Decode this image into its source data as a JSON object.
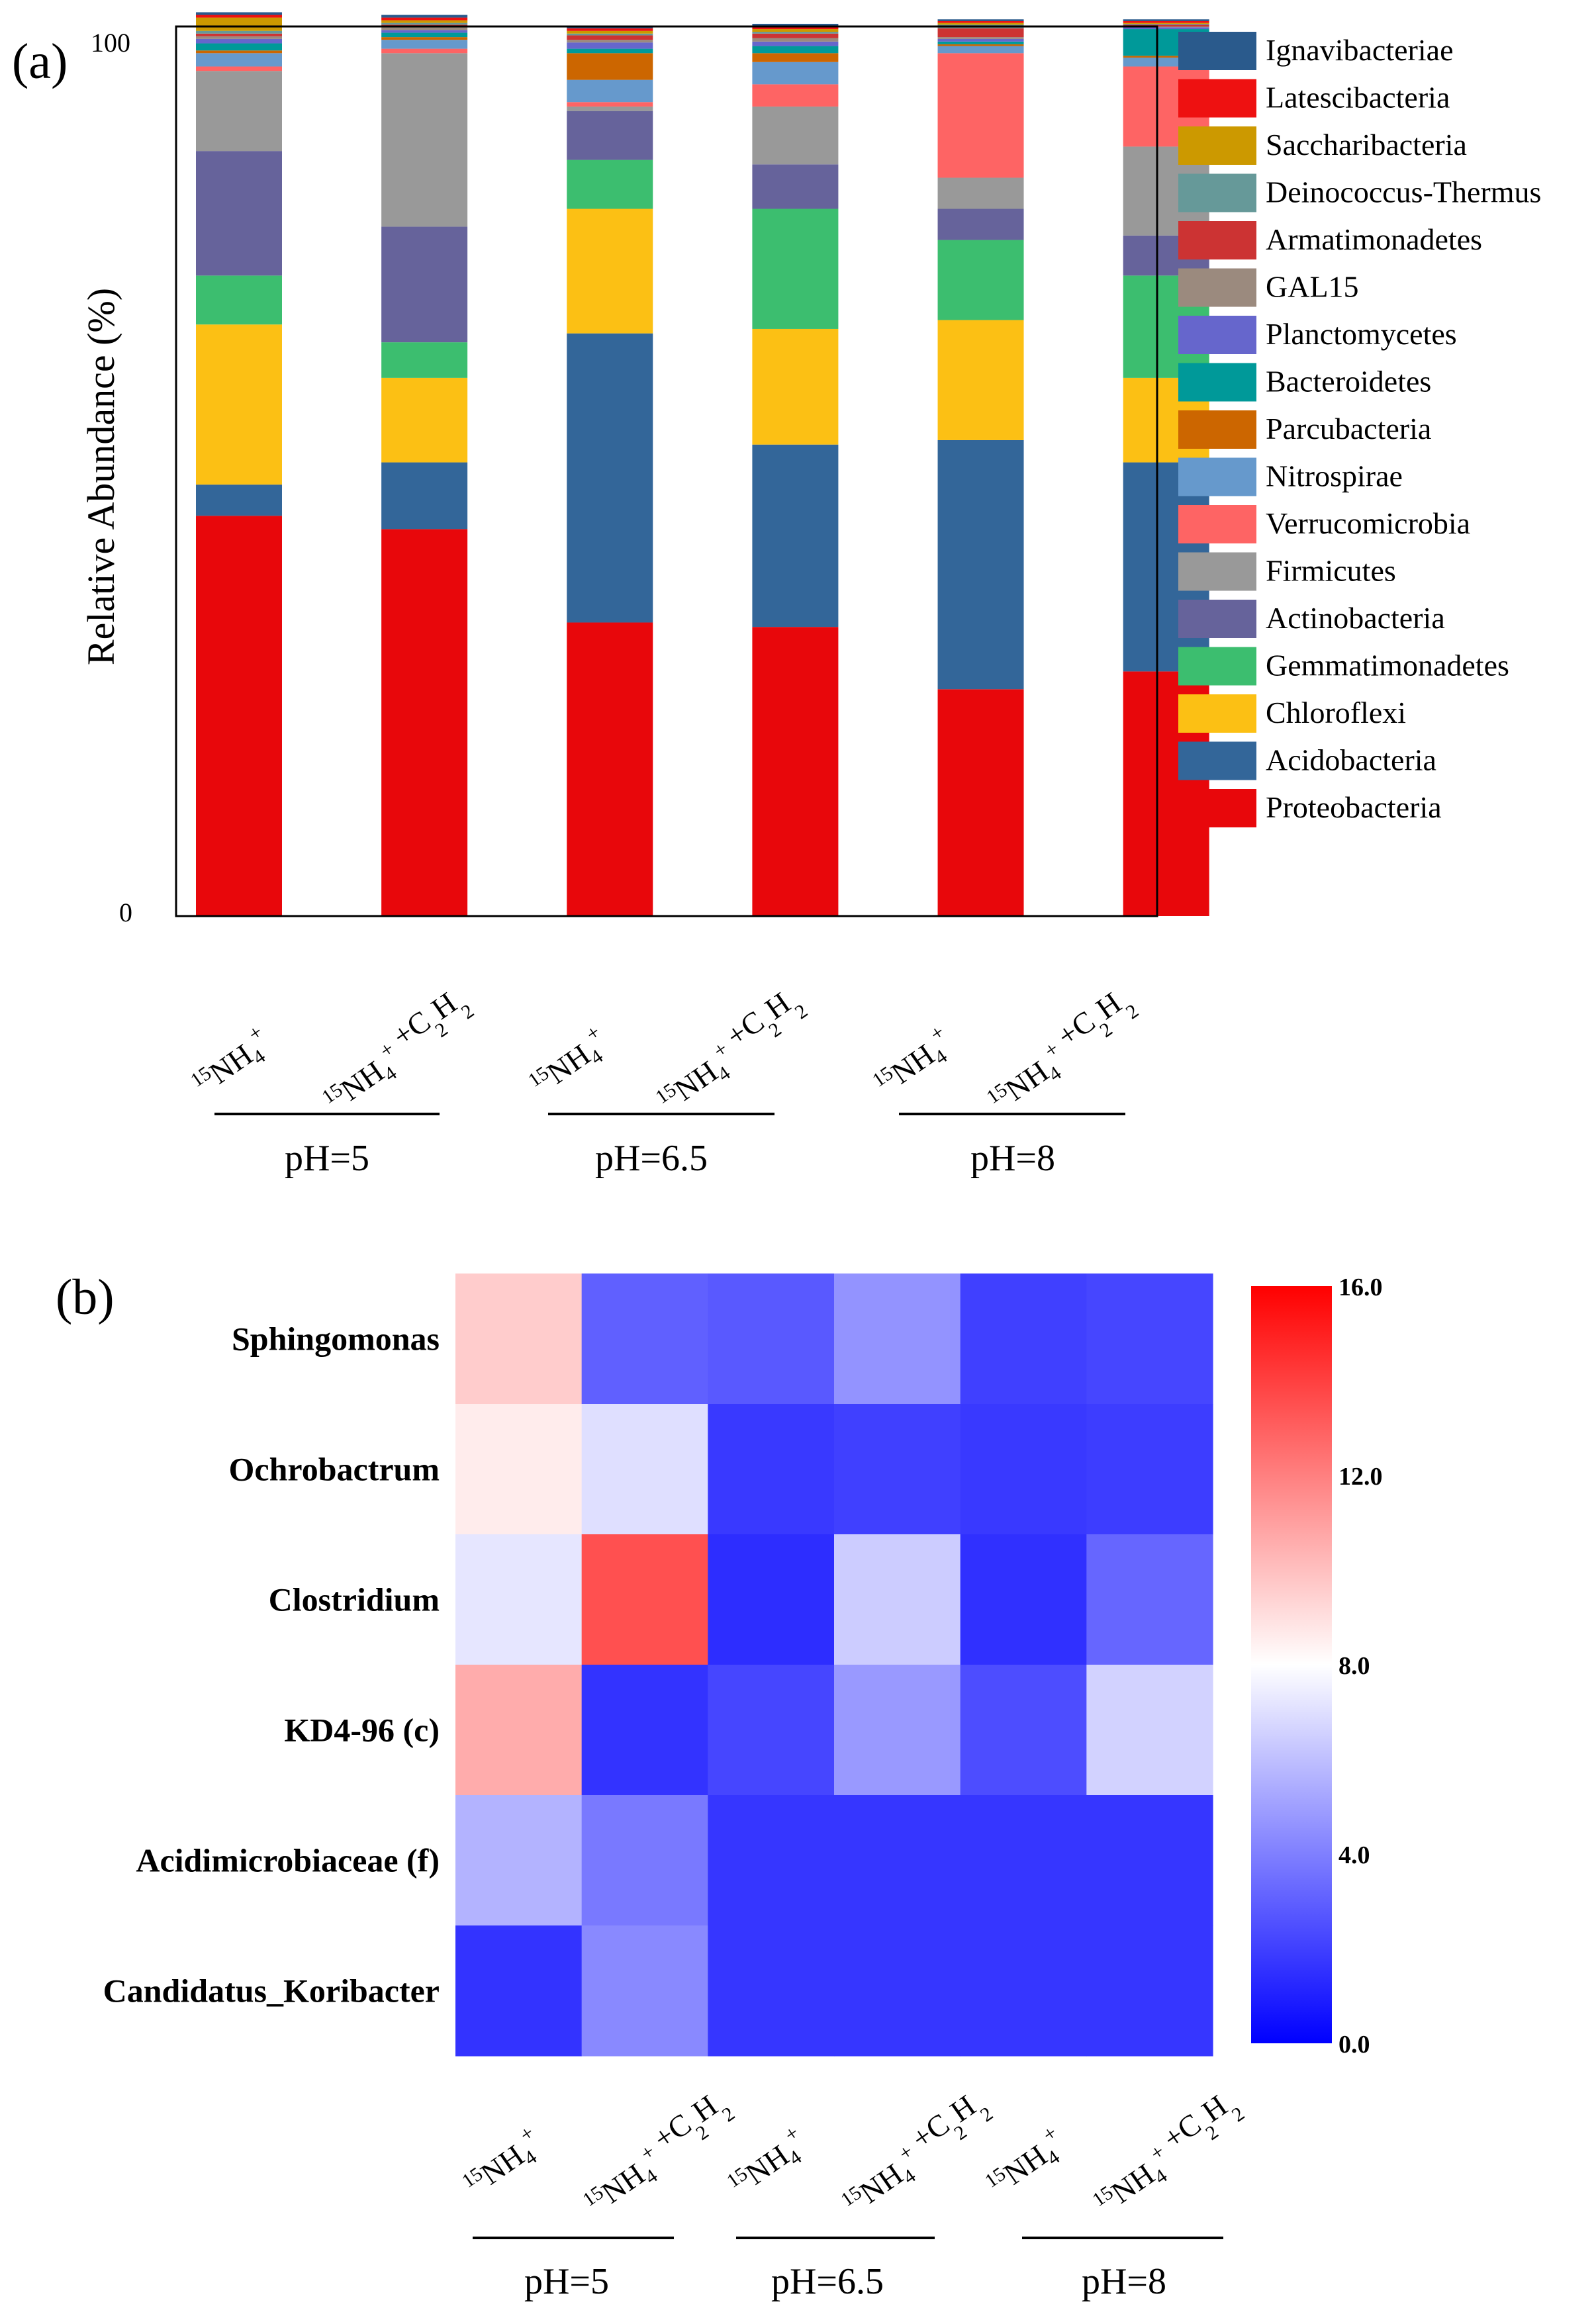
{
  "panel_a": {
    "panel_label": "(a)",
    "ylabel": "Relative Abundance (%)",
    "ytick_top": "100",
    "ytick_bottom": "0",
    "group_labels": [
      "pH=5",
      "pH=6.5",
      "pH=8"
    ]
  },
  "panel_b": {
    "panel_label": "(b)",
    "colorbar_ticks": [
      "16.0",
      "12.0",
      "8.0",
      "4.0",
      "0.0"
    ],
    "group_labels": [
      "pH=5",
      "pH=6.5",
      "pH=8"
    ]
  },
  "chart_data": [
    {
      "type": "bar",
      "stacked": true,
      "ylabel": "Relative Abundance (%)",
      "ylim": [
        0,
        100
      ],
      "categories": [
        "15NH4+ (pH=5)",
        "15NH4+ +C2H2 (pH=5)",
        "15NH4+ (pH=6.5)",
        "15NH4+ +C2H2 (pH=6.5)",
        "15NH4+ (pH=8)",
        "15NH4+ +C2H2 (pH=8)"
      ],
      "category_groups": [
        "pH=5",
        "pH=5",
        "pH=6.5",
        "pH=6.5",
        "pH=8",
        "pH=8"
      ],
      "legend_position": "right",
      "series": [
        {
          "name": "Proteobacteria",
          "color": "#E8070B",
          "values": [
            45.0,
            43.5,
            33.0,
            32.5,
            25.5,
            27.5
          ]
        },
        {
          "name": "Acidobacteria",
          "color": "#336699",
          "values": [
            3.5,
            7.5,
            32.5,
            20.5,
            28.0,
            23.5
          ]
        },
        {
          "name": "Chloroflexi",
          "color": "#FCC014",
          "values": [
            18.0,
            9.5,
            14.0,
            13.0,
            13.5,
            9.5
          ]
        },
        {
          "name": "Gemmatimonadetes",
          "color": "#3CBE6F",
          "values": [
            5.5,
            4.0,
            5.5,
            13.5,
            9.0,
            11.5
          ]
        },
        {
          "name": "Actinobacteria",
          "color": "#66639B",
          "values": [
            14.0,
            13.0,
            5.5,
            5.0,
            3.5,
            4.5
          ]
        },
        {
          "name": "Firmicutes",
          "color": "#999999",
          "values": [
            9.0,
            19.5,
            0.5,
            6.5,
            3.5,
            10.0
          ]
        },
        {
          "name": "Verrucomicrobia",
          "color": "#FE6464",
          "values": [
            0.5,
            0.5,
            0.5,
            2.5,
            14.0,
            9.0
          ]
        },
        {
          "name": "Nitrospirae",
          "color": "#6699CC",
          "values": [
            1.5,
            1.0,
            2.5,
            2.5,
            0.8,
            1.0
          ]
        },
        {
          "name": "Parcubacteria",
          "color": "#CC6600",
          "values": [
            0.3,
            0.3,
            3.0,
            1.0,
            0.2,
            0.2
          ]
        },
        {
          "name": "Bacteroidetes",
          "color": "#009999",
          "values": [
            0.8,
            0.5,
            0.5,
            0.8,
            0.3,
            3.0
          ]
        },
        {
          "name": "Planctomycetes",
          "color": "#6666CC",
          "values": [
            0.5,
            0.3,
            0.7,
            0.5,
            0.3,
            0.2
          ]
        },
        {
          "name": "GAL15",
          "color": "#9B8A7E",
          "values": [
            0.3,
            0.3,
            0.3,
            0.4,
            0.2,
            0.1
          ]
        },
        {
          "name": "Armatimonadetes",
          "color": "#CC3333",
          "values": [
            0.3,
            0.3,
            0.5,
            0.5,
            1.0,
            0.2
          ]
        },
        {
          "name": "Deinococcus-Thermus",
          "color": "#669999",
          "values": [
            0.3,
            0.2,
            0.2,
            0.2,
            0.4,
            0.1
          ]
        },
        {
          "name": "Saccharibacteria",
          "color": "#CC9900",
          "values": [
            1.5,
            0.3,
            0.3,
            0.3,
            0.2,
            0.1
          ]
        },
        {
          "name": "Latescibacteria",
          "color": "#EE1111",
          "values": [
            0.3,
            0.3,
            0.3,
            0.3,
            0.2,
            0.2
          ]
        },
        {
          "name": "Ignavibacteriae",
          "color": "#2A5A8C",
          "values": [
            0.3,
            0.3,
            0.3,
            0.3,
            0.2,
            0.2
          ]
        }
      ]
    },
    {
      "type": "heatmap",
      "rows": [
        "Sphingomonas",
        "Ochrobactrum",
        "Clostridium",
        "KD4-96 (c)",
        "Acidimicrobiaceae (f)",
        "Candidatus_Koribacter"
      ],
      "columns": [
        "15NH4+ (pH=5)",
        "15NH4+ +C2H2 (pH=5)",
        "15NH4+ (pH=6.5)",
        "15NH4+ +C2H2 (pH=6.5)",
        "15NH4+ (pH=8)",
        "15NH4+ +C2H2 (pH=8)"
      ],
      "column_groups": [
        "pH=5",
        "pH=5",
        "pH=6.5",
        "pH=6.5",
        "pH=8",
        "pH=8"
      ],
      "values": [
        [
          9.6,
          3.0,
          2.8,
          4.6,
          2.0,
          2.2
        ],
        [
          8.6,
          7.0,
          1.8,
          2.0,
          1.8,
          1.9
        ],
        [
          7.2,
          13.5,
          1.4,
          6.4,
          1.5,
          3.2
        ],
        [
          10.6,
          1.6,
          2.2,
          4.8,
          2.4,
          6.6
        ],
        [
          5.6,
          3.8,
          1.7,
          1.7,
          1.7,
          1.7
        ],
        [
          1.6,
          4.3,
          1.7,
          1.7,
          1.7,
          1.7
        ]
      ],
      "colorscale": [
        "#0000FF",
        "#FFFFFF",
        "#FF0000"
      ],
      "vmin": 0.0,
      "vmid": 8.0,
      "vmax": 16.0
    }
  ]
}
